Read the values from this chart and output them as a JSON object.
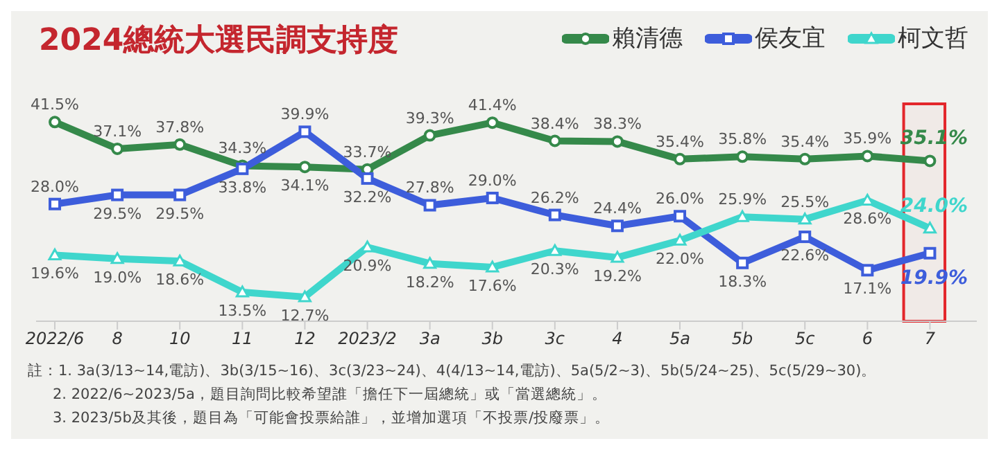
{
  "chart_data": {
    "type": "line",
    "title": "2024總統大選民調支持度",
    "categories": [
      "2022/6",
      "8",
      "10",
      "11",
      "12",
      "2023/2",
      "3a",
      "3b",
      "3c",
      "4",
      "5a",
      "5b",
      "5c",
      "6",
      "7"
    ],
    "series": [
      {
        "name": "賴清德",
        "color": "#35894a",
        "marker": "circle",
        "values": [
          41.5,
          37.1,
          37.8,
          34.3,
          34.1,
          33.7,
          39.3,
          41.4,
          38.4,
          38.3,
          35.4,
          35.8,
          35.4,
          35.9,
          35.1
        ],
        "value_labels": [
          "41.5%",
          "37.1%",
          "37.8%",
          "34.3%",
          "34.1%",
          "33.7%",
          "39.3%",
          "41.4%",
          "38.4%",
          "38.3%",
          "35.4%",
          "35.8%",
          "35.4%",
          "35.9%",
          "35.1%"
        ]
      },
      {
        "name": "侯友宜",
        "color": "#3d5ddb",
        "marker": "square",
        "values": [
          28.0,
          29.5,
          29.5,
          33.8,
          39.9,
          32.2,
          27.8,
          29.0,
          26.2,
          24.4,
          26.0,
          18.3,
          22.6,
          17.1,
          19.9
        ],
        "value_labels": [
          "28.0%",
          "29.5%",
          "29.5%",
          "33.8%",
          "39.9%",
          "32.2%",
          "27.8%",
          "29.0%",
          "26.2%",
          "24.4%",
          "26.0%",
          "18.3%",
          "22.6%",
          "17.1%",
          "19.9%"
        ]
      },
      {
        "name": "柯文哲",
        "color": "#3fd6cc",
        "marker": "triangle",
        "values": [
          19.6,
          19.0,
          18.6,
          13.5,
          12.7,
          20.9,
          18.2,
          17.6,
          20.3,
          19.2,
          22.0,
          25.9,
          25.5,
          28.6,
          24.0
        ],
        "value_labels": [
          "19.6%",
          "19.0%",
          "18.6%",
          "13.5%",
          "12.7%",
          "20.9%",
          "18.2%",
          "17.6%",
          "20.3%",
          "19.2%",
          "22.0%",
          "25.9%",
          "25.5%",
          "28.6%",
          "24.0%"
        ]
      }
    ],
    "legend": "top right",
    "bands": [
      {
        "axis": "x",
        "from": "7",
        "to": "7",
        "color": "#e3262b"
      }
    ],
    "annotations": [
      "註：1. 3a(3/13~14,電訪)、3b(3/15~16)、3c(3/23~24)、4(4/13~14,電訪)、5a(5/2~3)、5b(5/24~25)、5c(5/29~30)。",
      "2. 2022/6~2023/5a，題目詢問比較希望誰「擔任下一屆總統」或「當選總統」。",
      "3. 2023/5b及其後，題目為「可能會投票給誰」，並增加選項「不投票/投廢票」。"
    ]
  }
}
